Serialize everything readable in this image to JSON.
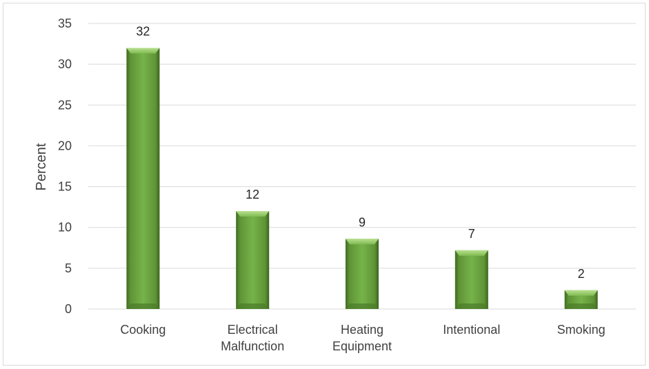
{
  "chart_data": {
    "type": "bar",
    "categories": [
      "Cooking",
      "Electrical Malfunction",
      "Heating Equipment",
      "Intentional",
      "Smoking"
    ],
    "category_lines": [
      [
        "Cooking"
      ],
      [
        "Electrical",
        "Malfunction"
      ],
      [
        "Heating",
        "Equipment"
      ],
      [
        "Intentional"
      ],
      [
        "Smoking"
      ]
    ],
    "values": [
      32,
      12,
      8.6,
      7.2,
      2.3
    ],
    "data_labels": [
      "32",
      "12",
      "9",
      "7",
      "2"
    ],
    "title": "",
    "xlabel": "",
    "ylabel": "Percent",
    "ylim": [
      0,
      35
    ],
    "yticks": [
      0,
      5,
      10,
      15,
      20,
      25,
      30,
      35
    ],
    "grid": true,
    "legend": "none",
    "bar_color": "#70ad47"
  }
}
